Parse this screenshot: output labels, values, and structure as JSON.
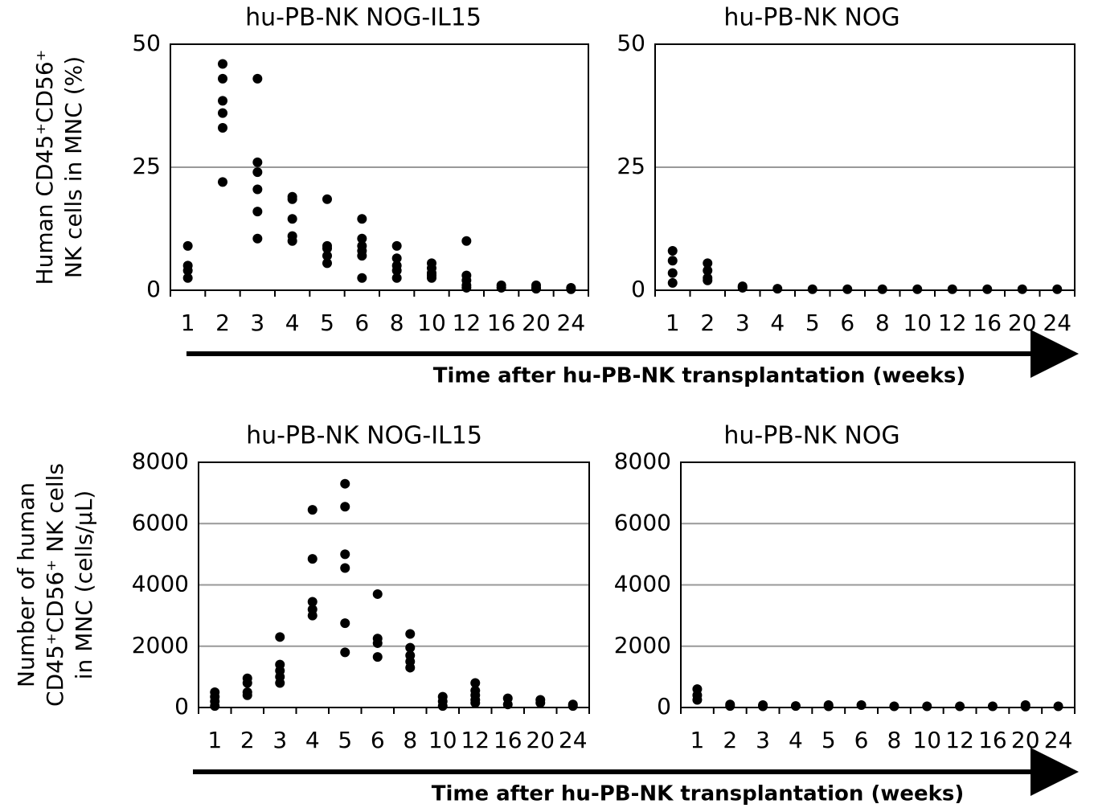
{
  "chart_data": [
    {
      "type": "dot",
      "title": "hu-PB-NK NOG-IL15",
      "ylabel": [
        "Human CD45⁺CD56⁺",
        "NK cells in MNC (%)"
      ],
      "xlabel": "Time after hu-PB-NK transplantation (weeks)",
      "categories": [
        "1",
        "2",
        "3",
        "4",
        "5",
        "6",
        "8",
        "10",
        "12",
        "16",
        "20",
        "24"
      ],
      "values": [
        [
          9,
          5,
          4,
          2.5
        ],
        [
          46,
          43,
          38.5,
          36,
          33,
          22
        ],
        [
          43,
          26,
          24,
          20.5,
          16,
          10.5
        ],
        [
          19,
          18.5,
          14.5,
          11,
          10
        ],
        [
          18.5,
          9,
          8.5,
          7,
          5.5
        ],
        [
          14.5,
          10.5,
          9,
          8,
          7,
          2.5
        ],
        [
          9,
          6.5,
          5,
          4,
          2.5
        ],
        [
          5.5,
          4.5,
          3.5,
          3,
          2.5
        ],
        [
          10,
          3,
          2,
          1,
          0.5
        ],
        [
          1,
          0.5
        ],
        [
          1,
          0.5,
          0.3
        ],
        [
          0.5,
          0.2
        ]
      ],
      "color": "#000000",
      "ylim": [
        0,
        50
      ],
      "yticks": [
        0,
        25,
        50
      ],
      "grid": true
    },
    {
      "type": "dot",
      "title": "hu-PB-NK NOG",
      "categories": [
        "1",
        "2",
        "3",
        "4",
        "5",
        "6",
        "8",
        "10",
        "12",
        "16",
        "20",
        "24"
      ],
      "values": [
        [
          8,
          6,
          3.5,
          1.5
        ],
        [
          5.5,
          4,
          2.5,
          2
        ],
        [
          0.8,
          0.5
        ],
        [
          0.3
        ],
        [
          0.2
        ],
        [
          0.2
        ],
        [
          0.2
        ],
        [
          0.2
        ],
        [
          0.2
        ],
        [
          0.2
        ],
        [
          0.2
        ],
        [
          0.2
        ]
      ],
      "color": "#000000",
      "ylim": [
        0,
        50
      ],
      "yticks": [
        0,
        25,
        50
      ],
      "grid": true
    },
    {
      "type": "dot",
      "title": "hu-PB-NK NOG-IL15",
      "ylabel": [
        "Number of human",
        "CD45⁺CD56⁺ NK cells",
        "in MNC (cells/µL)"
      ],
      "xlabel": "Time after hu-PB-NK transplantation (weeks)",
      "categories": [
        "1",
        "2",
        "3",
        "4",
        "5",
        "6",
        "8",
        "10",
        "12",
        "16",
        "20",
        "24"
      ],
      "values": [
        [
          500,
          350,
          200,
          50
        ],
        [
          950,
          800,
          500,
          400
        ],
        [
          2300,
          1400,
          1200,
          1000,
          800
        ],
        [
          6450,
          4850,
          3450,
          3200,
          3000
        ],
        [
          7300,
          6550,
          5000,
          4550,
          2750,
          1800
        ],
        [
          3700,
          2250,
          2100,
          1650
        ],
        [
          2400,
          1950,
          1700,
          1500,
          1300
        ],
        [
          350,
          200,
          50
        ],
        [
          800,
          550,
          400,
          250,
          150
        ],
        [
          300,
          100
        ],
        [
          250,
          150
        ],
        [
          100,
          50
        ]
      ],
      "color": "#000000",
      "ylim": [
        0,
        8000
      ],
      "yticks": [
        0,
        2000,
        4000,
        6000,
        8000
      ],
      "grid": true
    },
    {
      "type": "dot",
      "title": "hu-PB-NK NOG",
      "categories": [
        "1",
        "2",
        "3",
        "4",
        "5",
        "6",
        "8",
        "10",
        "12",
        "16",
        "20",
        "24"
      ],
      "values": [
        [
          600,
          400,
          250
        ],
        [
          100,
          50
        ],
        [
          80,
          40
        ],
        [
          50
        ],
        [
          80,
          40
        ],
        [
          80
        ],
        [
          40
        ],
        [
          40
        ],
        [
          40
        ],
        [
          40
        ],
        [
          80,
          30
        ],
        [
          40
        ]
      ],
      "color": "#000000",
      "ylim": [
        0,
        8000
      ],
      "yticks": [
        0,
        2000,
        4000,
        6000,
        8000
      ],
      "grid": true
    }
  ]
}
